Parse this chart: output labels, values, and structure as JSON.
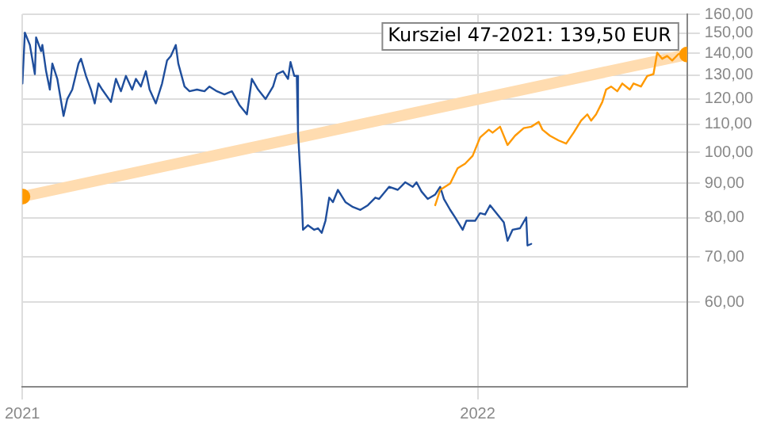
{
  "chart_data": {
    "type": "line",
    "log": "y",
    "grid": true,
    "legend": false,
    "marker": "none",
    "line_style": "solid",
    "xlim": [
      "2021-01-01",
      "2022-06-18"
    ],
    "xticks": [
      "2021",
      "2022"
    ],
    "ylim": [
      45,
      160
    ],
    "yticks": [
      {
        "value": 60,
        "label": "60,00"
      },
      {
        "value": 70,
        "label": "70,00"
      },
      {
        "value": 80,
        "label": "80,00"
      },
      {
        "value": 90,
        "label": "90,00"
      },
      {
        "value": 100,
        "label": "100,00"
      },
      {
        "value": 110,
        "label": "110,00"
      },
      {
        "value": 120,
        "label": "120,00"
      },
      {
        "value": 130,
        "label": "130,00"
      },
      {
        "value": 140,
        "label": "140,00"
      },
      {
        "value": 150,
        "label": "150,00"
      },
      {
        "value": 160,
        "label": "160,00"
      }
    ],
    "annotations": [
      "Kursziel 47-2021: 139,50 EUR"
    ],
    "series": [
      {
        "color": "#ffdcb0",
        "marker": "circle",
        "x": [
          "2021-01-01",
          "2022-06-18"
        ],
        "values": [
          86,
          139.5
        ]
      },
      {
        "color": "#1f4e9c",
        "x": [
          "2021-01-01",
          "2021-01-03",
          "2021-01-07",
          "2021-01-11",
          "2021-01-12",
          "2021-01-16",
          "2021-01-17",
          "2021-01-20",
          "2021-01-23",
          "2021-01-25",
          "2021-01-29",
          "2021-02-03",
          "2021-02-06",
          "2021-02-10",
          "2021-02-15",
          "2021-02-17",
          "2021-02-21",
          "2021-02-25",
          "2021-02-28",
          "2021-03-03",
          "2021-03-06",
          "2021-03-13",
          "2021-03-17",
          "2021-03-21",
          "2021-03-25",
          "2021-03-30",
          "2021-04-02",
          "2021-04-06",
          "2021-04-10",
          "2021-04-13",
          "2021-04-18",
          "2021-04-23",
          "2021-04-27",
          "2021-04-30",
          "2021-05-04",
          "2021-05-06",
          "2021-05-11",
          "2021-05-15",
          "2021-05-21",
          "2021-05-27",
          "2021-05-31",
          "2021-06-06",
          "2021-06-12",
          "2021-06-18",
          "2021-06-24",
          "2021-06-30",
          "2021-07-04",
          "2021-07-09",
          "2021-07-15",
          "2021-07-21",
          "2021-07-24",
          "2021-07-29",
          "2021-08-02",
          "2021-08-04",
          "2021-08-07",
          "2021-08-09",
          "2021-08-10",
          "2021-08-13",
          "2021-08-14",
          "2021-08-18",
          "2021-08-23",
          "2021-08-26",
          "2021-08-29",
          "2021-09-01",
          "2021-09-04",
          "2021-09-07",
          "2021-09-11",
          "2021-09-17",
          "2021-09-23",
          "2021-09-29",
          "2021-10-05",
          "2021-10-11",
          "2021-10-14",
          "2021-10-22",
          "2021-10-29",
          "2021-11-04",
          "2021-11-10",
          "2021-11-13",
          "2021-11-17",
          "2021-11-22",
          "2021-11-28",
          "2021-12-02",
          "2021-12-05",
          "2021-12-10",
          "2021-12-14",
          "2021-12-20",
          "2021-12-23",
          "2021-12-30",
          "2022-01-03",
          "2022-01-07",
          "2022-01-11",
          "2022-01-17",
          "2022-01-22",
          "2022-01-25",
          "2022-01-29",
          "2022-02-04",
          "2022-02-09",
          "2022-02-10",
          "2022-02-13"
        ],
        "values": [
          126.4,
          150.3,
          144.1,
          130.5,
          147.9,
          141.1,
          144.1,
          131.8,
          123.8,
          135.3,
          128.4,
          113.2,
          119.9,
          123.8,
          135.3,
          137.5,
          129.7,
          123.8,
          118.1,
          126.4,
          123.8,
          118.7,
          128.4,
          123.1,
          129.7,
          123.8,
          128.4,
          125.1,
          131.8,
          123.8,
          118.1,
          126.4,
          136.7,
          138.8,
          144.1,
          135.3,
          125.1,
          123.1,
          123.8,
          123.1,
          125.1,
          123.1,
          121.8,
          123.1,
          117.5,
          113.8,
          128.4,
          123.8,
          119.9,
          125.1,
          130.5,
          131.8,
          128.4,
          136.0,
          129.7,
          129.7,
          106.9,
          85.3,
          76.8,
          78.0,
          76.8,
          77.2,
          76.0,
          79.2,
          85.7,
          84.4,
          88.0,
          84.4,
          83.0,
          82.2,
          83.5,
          85.7,
          85.3,
          88.9,
          88.0,
          90.3,
          88.9,
          90.3,
          87.5,
          85.3,
          86.6,
          88.9,
          85.3,
          82.2,
          80.1,
          76.8,
          79.2,
          79.2,
          81.3,
          80.9,
          83.5,
          80.9,
          78.8,
          74.0,
          76.8,
          77.2,
          80.1,
          72.8,
          73.2
        ]
      },
      {
        "color": "#ff9900",
        "x": [
          "2021-11-28",
          "2021-12-02",
          "2021-12-10",
          "2021-12-16",
          "2021-12-22",
          "2021-12-28",
          "2022-01-03",
          "2022-01-10",
          "2022-01-13",
          "2022-01-19",
          "2022-01-25",
          "2022-01-31",
          "2022-02-07",
          "2022-02-13",
          "2022-02-19",
          "2022-02-22",
          "2022-02-28",
          "2022-03-07",
          "2022-03-13",
          "2022-03-19",
          "2022-03-25",
          "2022-03-30",
          "2022-04-02",
          "2022-04-06",
          "2022-04-11",
          "2022-04-14",
          "2022-04-18",
          "2022-04-23",
          "2022-04-27",
          "2022-05-03",
          "2022-05-06",
          "2022-05-12",
          "2022-05-17",
          "2022-05-22",
          "2022-05-25",
          "2022-05-29",
          "2022-06-02",
          "2022-06-06",
          "2022-06-11",
          "2022-06-14"
        ],
        "values": [
          83.5,
          88.0,
          89.9,
          94.7,
          96.2,
          98.8,
          105.2,
          108.0,
          106.9,
          109.1,
          102.5,
          105.8,
          108.6,
          109.1,
          110.9,
          108.0,
          105.8,
          104.1,
          103.0,
          106.9,
          111.4,
          113.8,
          111.4,
          113.8,
          118.7,
          123.8,
          125.1,
          123.1,
          126.4,
          123.8,
          126.4,
          125.1,
          129.7,
          130.5,
          140.4,
          137.5,
          138.8,
          136.7,
          139.7,
          140.4
        ]
      }
    ]
  }
}
